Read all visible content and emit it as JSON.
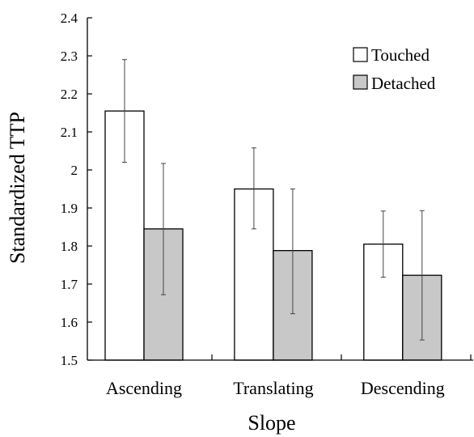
{
  "chart_data": {
    "type": "bar",
    "title": "",
    "xlabel": "Slope",
    "ylabel": "Standardized TTP",
    "ylim": [
      1.5,
      2.4
    ],
    "yticks": [
      "1.5",
      "1.6",
      "1.7",
      "1.8",
      "1.9",
      "2",
      "2.1",
      "2.2",
      "2.3",
      "2.4"
    ],
    "categories": [
      "Ascending",
      "Translating",
      "Descending"
    ],
    "series": [
      {
        "name": "Touched",
        "color": "#ffffff",
        "values": [
          2.155,
          1.95,
          1.805
        ],
        "error_low": [
          2.02,
          1.845,
          1.718
        ],
        "error_high": [
          2.29,
          2.058,
          1.892
        ]
      },
      {
        "name": "Detached",
        "color": "#c8c8c8",
        "values": [
          1.845,
          1.788,
          1.723
        ],
        "error_low": [
          1.672,
          1.622,
          1.553
        ],
        "error_high": [
          2.017,
          1.95,
          1.893
        ]
      }
    ],
    "legend": "top-right",
    "grid": false
  }
}
